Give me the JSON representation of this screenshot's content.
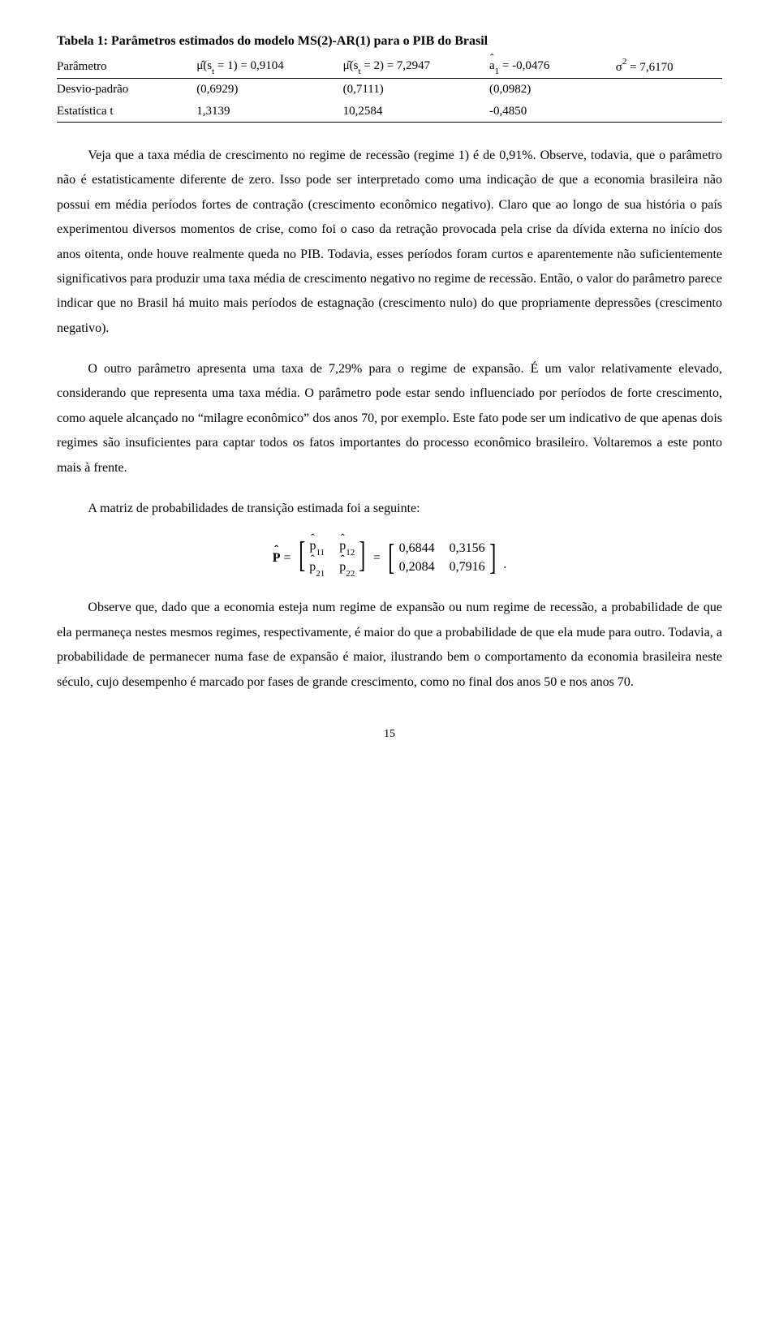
{
  "table": {
    "title": "Tabela 1: Parâmetros estimados do modelo MS(2)-AR(1) para o PIB do Brasil",
    "headers": {
      "c1": "Parâmetro",
      "c2_html": "μ̂(s<sub class=\"sub\">t</sub> = 1) = 0,9104",
      "c3_html": "μ̂(s<sub class=\"sub\">t</sub> = 2) = 7,2947",
      "c4_html": "<span class=\"hat\">a</span><sub class=\"sub\">1</sub> = -0,0476",
      "c5_html": "σ<sup class=\"sup\">2</sup> = 7,6170"
    },
    "rows": [
      {
        "c1": "Desvio-padrão",
        "c2": "(0,6929)",
        "c3": "(0,7111)",
        "c4": "(0,0982)",
        "c5": ""
      },
      {
        "c1": "Estatística t",
        "c2": "1,3139",
        "c3": "10,2584",
        "c4": "-0,4850",
        "c5": ""
      }
    ]
  },
  "paragraphs": {
    "p1": "Veja que a taxa média de crescimento no regime de recessão (regime 1) é de 0,91%. Observe, todavia, que o parâmetro não é estatisticamente diferente de zero. Isso pode ser interpretado como uma indicação de que a economia brasileira não possui em média períodos fortes de contração (crescimento econômico negativo). Claro que ao longo de sua história o país experimentou diversos momentos de crise, como foi o caso da retração provocada pela crise da dívida externa no início dos anos oitenta, onde houve realmente queda no PIB. Todavia, esses períodos foram curtos e aparentemente não suficientemente significativos para produzir uma taxa média de crescimento negativo no regime de recessão. Então, o valor do parâmetro parece indicar que no Brasil há muito mais períodos de estagnação (crescimento nulo) do que propriamente depressões (crescimento negativo).",
    "p2": "O outro parâmetro apresenta uma taxa de 7,29% para o regime de expansão. É um valor relativamente elevado, considerando que representa uma taxa média. O parâmetro pode estar sendo influenciado por períodos de forte crescimento, como aquele alcançado no “milagre econômico” dos anos 70, por exemplo. Este fato pode ser um indicativo de que apenas dois regimes são insuficientes para captar todos os fatos importantes do processo econômico brasileiro. Voltaremos a este ponto mais à frente.",
    "p3": "A matriz de probabilidades de transição estimada foi a seguinte:",
    "p4": "Observe que, dado que a economia esteja num regime de expansão ou num regime de recessão, a probabilidade de que ela permaneça nestes mesmos regimes, respectivamente, é maior do que a probabilidade de que ela mude para outro. Todavia, a probabilidade de permanecer numa fase de expansão é maior, ilustrando bem o comportamento da economia brasileira neste século, cujo desempenho é marcado por fases de grande crescimento, como no final dos anos 50 e nos anos 70."
  },
  "matrix": {
    "lhs_html": "<span class=\"hat mbold\">P</span> =",
    "sym": {
      "a_html": "<span class=\"hat\">p</span><sub class=\"sub\">11</sub>",
      "b_html": "<span class=\"hat\">p</span><sub class=\"sub\">12</sub>",
      "c_html": "<span class=\"hat\">p</span><sub class=\"sub\">21</sub>",
      "d_html": "<span class=\"hat\">p</span><sub class=\"sub\">22</sub>"
    },
    "eq": "=",
    "num": {
      "a": "0,6844",
      "b": "0,3156",
      "c": "0,2084",
      "d": "0,7916"
    },
    "punct": "."
  },
  "page_number": "15"
}
